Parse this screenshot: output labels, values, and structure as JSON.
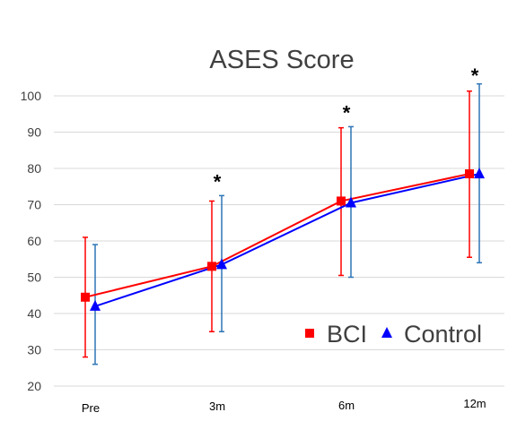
{
  "chart_data": {
    "type": "line",
    "title": "ASES Score",
    "xlabel": "",
    "ylabel": "",
    "categories": [
      "Pre",
      "3m",
      "6m",
      "12m"
    ],
    "ylim": [
      20,
      100
    ],
    "yticks": [
      20,
      30,
      40,
      50,
      60,
      70,
      80,
      90,
      100
    ],
    "grid": true,
    "legend_position": "bottom-right",
    "series": [
      {
        "name": "BCI",
        "marker": "square",
        "color": "#ff0000",
        "error_color": "#ff0000",
        "values": [
          44.5,
          53.0,
          71.0,
          78.5
        ],
        "error_low": [
          28.0,
          35.0,
          50.5,
          55.5
        ],
        "error_high": [
          61.0,
          71.0,
          91.2,
          101.3
        ]
      },
      {
        "name": "Control",
        "marker": "triangle",
        "color": "#0000ff",
        "error_color": "#2e75b6",
        "values": [
          42.0,
          53.5,
          70.5,
          78.5
        ],
        "error_low": [
          26.0,
          35.0,
          50.0,
          54.0
        ],
        "error_high": [
          59.0,
          72.5,
          91.5,
          103.3
        ]
      }
    ],
    "annotations": [
      {
        "category": "3m",
        "text": "*"
      },
      {
        "category": "6m",
        "text": "*"
      },
      {
        "category": "12m",
        "text": "*"
      }
    ]
  }
}
